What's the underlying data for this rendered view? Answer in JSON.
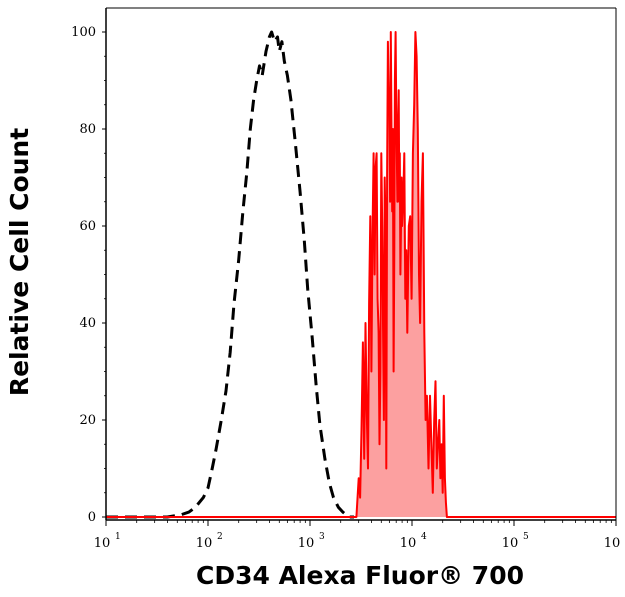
{
  "chart_data": {
    "type": "line",
    "title": "",
    "xlabel": "CD34 Alexa Fluor® 700",
    "ylabel": "Relative Cell Count",
    "x_scale": "log",
    "xlim": [
      10,
      1000000
    ],
    "ylim": [
      0,
      100
    ],
    "x_tick_labels": [
      {
        "base": "10",
        "exp": "1",
        "value": 10
      },
      {
        "base": "10",
        "exp": "2",
        "value": 100
      },
      {
        "base": "10",
        "exp": "3",
        "value": 1000
      },
      {
        "base": "10",
        "exp": "4",
        "value": 10000
      },
      {
        "base": "10",
        "exp": "5",
        "value": 100000
      },
      {
        "base": "10",
        "exp": "6",
        "value": 1000000
      }
    ],
    "y_ticks": [
      "0",
      "20",
      "40",
      "60",
      "80",
      "100"
    ],
    "grid": false,
    "legend": "none",
    "series": [
      {
        "style": "dashed",
        "color": "#000000",
        "fill": "none",
        "points": [
          [
            10,
            0
          ],
          [
            40,
            0
          ],
          [
            55,
            0.5
          ],
          [
            65,
            1
          ],
          [
            75,
            2
          ],
          [
            90,
            4
          ],
          [
            100,
            6
          ],
          [
            110,
            10
          ],
          [
            120,
            14
          ],
          [
            135,
            20
          ],
          [
            150,
            26
          ],
          [
            165,
            34
          ],
          [
            180,
            44
          ],
          [
            200,
            53
          ],
          [
            220,
            63
          ],
          [
            240,
            71
          ],
          [
            260,
            80
          ],
          [
            280,
            86
          ],
          [
            300,
            90
          ],
          [
            320,
            93
          ],
          [
            340,
            91
          ],
          [
            370,
            96
          ],
          [
            400,
            99
          ],
          [
            420,
            100
          ],
          [
            450,
            98
          ],
          [
            480,
            99
          ],
          [
            500,
            96
          ],
          [
            530,
            98
          ],
          [
            560,
            94
          ],
          [
            600,
            91
          ],
          [
            650,
            86
          ],
          [
            720,
            77
          ],
          [
            800,
            67
          ],
          [
            880,
            57
          ],
          [
            950,
            47
          ],
          [
            1050,
            37
          ],
          [
            1150,
            27
          ],
          [
            1250,
            19
          ],
          [
            1400,
            12
          ],
          [
            1550,
            7
          ],
          [
            1700,
            4
          ],
          [
            1900,
            2
          ],
          [
            2100,
            1
          ],
          [
            2400,
            0
          ],
          [
            2700,
            0
          ]
        ]
      },
      {
        "style": "solid",
        "color": "#ff0000",
        "fill": "#fca0a0",
        "points": [
          [
            10,
            0
          ],
          [
            2850,
            0
          ],
          [
            3000,
            8
          ],
          [
            3100,
            4
          ],
          [
            3200,
            18
          ],
          [
            3300,
            36
          ],
          [
            3400,
            12
          ],
          [
            3500,
            40
          ],
          [
            3600,
            22
          ],
          [
            3700,
            10
          ],
          [
            3800,
            44
          ],
          [
            3900,
            62
          ],
          [
            4000,
            30
          ],
          [
            4100,
            58
          ],
          [
            4200,
            75
          ],
          [
            4300,
            50
          ],
          [
            4400,
            72
          ],
          [
            4500,
            75
          ],
          [
            4600,
            45
          ],
          [
            4700,
            38
          ],
          [
            4800,
            15
          ],
          [
            4900,
            30
          ],
          [
            5000,
            75
          ],
          [
            5100,
            60
          ],
          [
            5200,
            40
          ],
          [
            5300,
            20
          ],
          [
            5400,
            70
          ],
          [
            5500,
            60
          ],
          [
            5600,
            10
          ],
          [
            5700,
            70
          ],
          [
            5800,
            98
          ],
          [
            5900,
            88
          ],
          [
            6000,
            85
          ],
          [
            6100,
            65
          ],
          [
            6200,
            100
          ],
          [
            6300,
            80
          ],
          [
            6400,
            63
          ],
          [
            6500,
            80
          ],
          [
            6600,
            30
          ],
          [
            6700,
            55
          ],
          [
            6800,
            90
          ],
          [
            6900,
            100
          ],
          [
            7000,
            85
          ],
          [
            7100,
            75
          ],
          [
            7200,
            65
          ],
          [
            7300,
            80
          ],
          [
            7400,
            88
          ],
          [
            7500,
            65
          ],
          [
            7600,
            75
          ],
          [
            7700,
            50
          ],
          [
            7800,
            60
          ],
          [
            7900,
            70
          ],
          [
            8000,
            60
          ],
          [
            8200,
            65
          ],
          [
            8400,
            75
          ],
          [
            8600,
            45
          ],
          [
            8800,
            55
          ],
          [
            9000,
            38
          ],
          [
            9300,
            60
          ],
          [
            9600,
            62
          ],
          [
            9900,
            45
          ],
          [
            10200,
            75
          ],
          [
            10500,
            85
          ],
          [
            10800,
            100
          ],
          [
            11100,
            95
          ],
          [
            11400,
            80
          ],
          [
            11700,
            50
          ],
          [
            12000,
            40
          ],
          [
            12400,
            65
          ],
          [
            12800,
            75
          ],
          [
            13200,
            38
          ],
          [
            13600,
            20
          ],
          [
            14000,
            25
          ],
          [
            14500,
            10
          ],
          [
            15000,
            25
          ],
          [
            15500,
            15
          ],
          [
            16000,
            5
          ],
          [
            16500,
            20
          ],
          [
            17000,
            28
          ],
          [
            17500,
            10
          ],
          [
            18000,
            15
          ],
          [
            18500,
            20
          ],
          [
            19000,
            8
          ],
          [
            19500,
            15
          ],
          [
            20000,
            5
          ],
          [
            20500,
            25
          ],
          [
            21000,
            8
          ],
          [
            21500,
            3
          ],
          [
            22000,
            0
          ],
          [
            1000000,
            0
          ]
        ]
      }
    ]
  }
}
